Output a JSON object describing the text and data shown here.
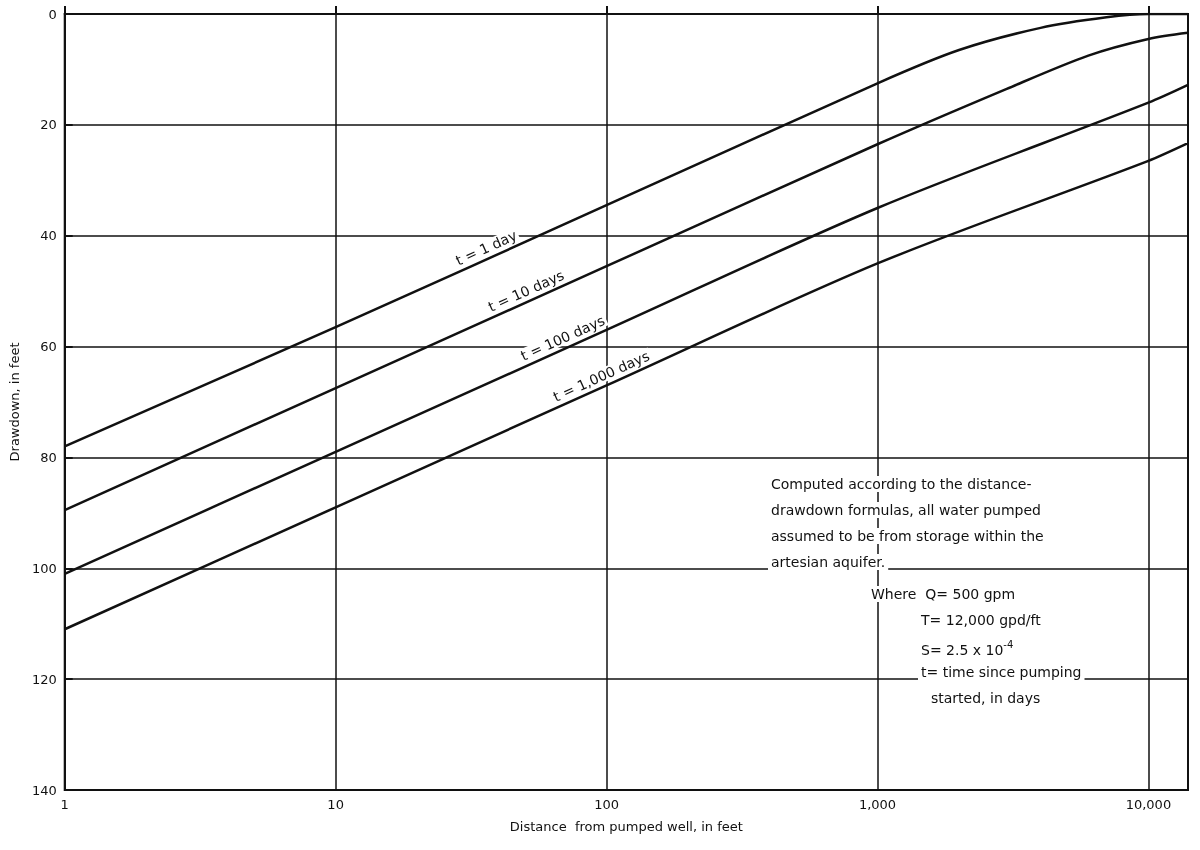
{
  "chart_data": {
    "type": "line",
    "xlabel": "Distance  from pumped well, in feet",
    "ylabel": "Drawdown, in feet",
    "xlim": [
      1,
      14000
    ],
    "xticks": [
      1,
      10,
      100,
      {
        "value": 1000,
        "label": "1,000"
      },
      {
        "value": 10000,
        "label": "10,000"
      }
    ],
    "ylim": [
      140,
      0
    ],
    "yticks": [
      0,
      20,
      40,
      60,
      80,
      100,
      120,
      140
    ],
    "log": "x",
    "grid": true,
    "marker": "none",
    "line_style": "solid",
    "legend": false,
    "series": [
      {
        "name": "t = 1 day",
        "color": "#111111",
        "x": [
          1,
          10,
          100,
          1000,
          2000,
          4000,
          7000,
          10000,
          14000
        ],
        "values": [
          78,
          56.5,
          34.5,
          12.5,
          6.5,
          2.5,
          0.6,
          0,
          0
        ]
      },
      {
        "name": "t = 10 days",
        "color": "#111111",
        "x": [
          1,
          10,
          100,
          1000,
          3000,
          6000,
          10000,
          14000
        ],
        "values": [
          89.5,
          67.5,
          45.5,
          23.5,
          13.5,
          7.5,
          4.5,
          3.4
        ]
      },
      {
        "name": "t = 100 days",
        "color": "#111111",
        "x": [
          1,
          10,
          100,
          1000,
          10000,
          14000
        ],
        "values": [
          101,
          79,
          57,
          35,
          16,
          12.8
        ]
      },
      {
        "name": "t = 1,000 days",
        "color": "#111111",
        "x": [
          1,
          10,
          100,
          1000,
          10000,
          14000
        ],
        "values": [
          111,
          89,
          67,
          45,
          26.5,
          23.3
        ]
      }
    ],
    "annotations": [
      "Computed according to the distance-",
      "drawdown formulas, all water pumped",
      "assumed to be from storage within the",
      "artesian aquifer.",
      "Where  Q= 500 gpm",
      "T= 12,000 gpd/ft",
      "S= 2.5 x 10$^{-4}$",
      "t= time since pumping",
      "started, in days"
    ]
  }
}
